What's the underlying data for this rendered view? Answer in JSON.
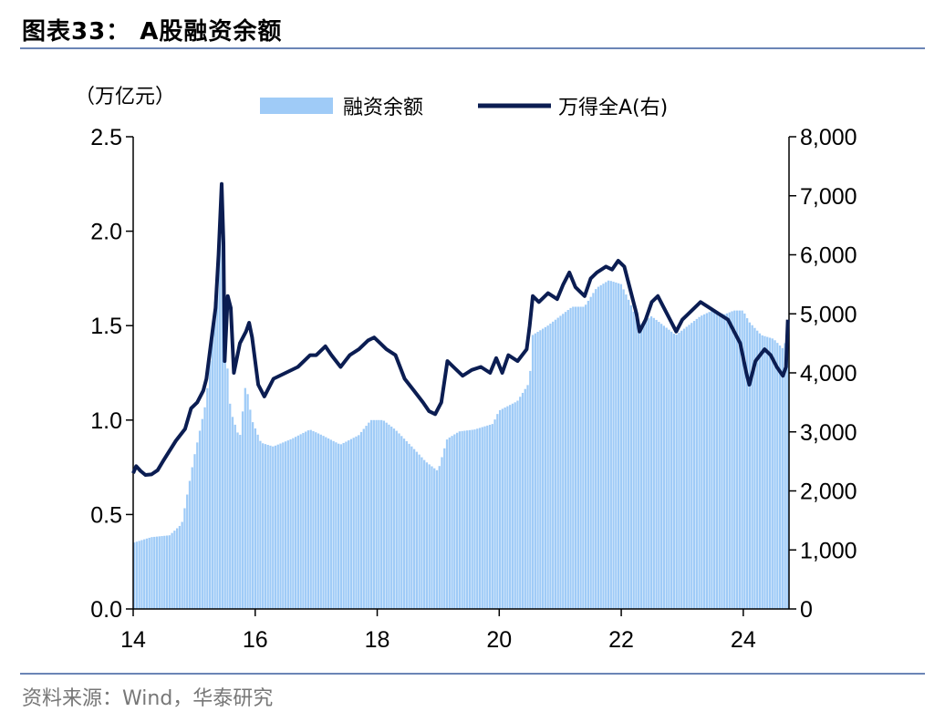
{
  "header": {
    "title": "图表33： A股融资余额"
  },
  "footer": {
    "source": "资料来源：Wind，华泰研究"
  },
  "colors": {
    "bar": "#9fcbf7",
    "line": "#0b1d52",
    "rule": "#6b85b6"
  },
  "chart_data": {
    "type": "bar+line",
    "left_axis_unit": "（万亿元）",
    "x_ticks": [
      "14",
      "16",
      "18",
      "20",
      "22",
      "24"
    ],
    "x_range": [
      2014.0,
      2024.75
    ],
    "y_left": {
      "range": [
        0,
        2.5
      ],
      "ticks": [
        "0.0",
        "0.5",
        "1.0",
        "1.5",
        "2.0",
        "2.5"
      ]
    },
    "y_right": {
      "range": [
        0,
        8000
      ],
      "ticks": [
        "0",
        "1,000",
        "2,000",
        "3,000",
        "4,000",
        "5,000",
        "6,000",
        "7,000",
        "8,000"
      ]
    },
    "series": [
      {
        "name": "融资余额",
        "kind": "bar",
        "axis": "left",
        "points": [
          [
            2014.0,
            0.35
          ],
          [
            2014.3,
            0.38
          ],
          [
            2014.6,
            0.39
          ],
          [
            2014.8,
            0.45
          ],
          [
            2015.0,
            0.8
          ],
          [
            2015.1,
            0.95
          ],
          [
            2015.2,
            1.1
          ],
          [
            2015.3,
            1.45
          ],
          [
            2015.4,
            1.85
          ],
          [
            2015.45,
            2.24
          ],
          [
            2015.5,
            1.5
          ],
          [
            2015.6,
            1.05
          ],
          [
            2015.75,
            0.9
          ],
          [
            2015.85,
            1.2
          ],
          [
            2015.95,
            1.0
          ],
          [
            2016.1,
            0.88
          ],
          [
            2016.3,
            0.86
          ],
          [
            2016.6,
            0.9
          ],
          [
            2016.9,
            0.95
          ],
          [
            2017.1,
            0.92
          ],
          [
            2017.4,
            0.87
          ],
          [
            2017.7,
            0.92
          ],
          [
            2017.9,
            1.0
          ],
          [
            2018.1,
            1.0
          ],
          [
            2018.3,
            0.95
          ],
          [
            2018.6,
            0.85
          ],
          [
            2018.8,
            0.78
          ],
          [
            2019.0,
            0.73
          ],
          [
            2019.15,
            0.9
          ],
          [
            2019.35,
            0.94
          ],
          [
            2019.6,
            0.95
          ],
          [
            2019.9,
            0.98
          ],
          [
            2020.0,
            1.05
          ],
          [
            2020.3,
            1.1
          ],
          [
            2020.5,
            1.2
          ],
          [
            2020.55,
            1.45
          ],
          [
            2020.8,
            1.5
          ],
          [
            2021.0,
            1.55
          ],
          [
            2021.2,
            1.6
          ],
          [
            2021.4,
            1.6
          ],
          [
            2021.6,
            1.7
          ],
          [
            2021.8,
            1.74
          ],
          [
            2022.0,
            1.72
          ],
          [
            2022.15,
            1.62
          ],
          [
            2022.3,
            1.5
          ],
          [
            2022.5,
            1.55
          ],
          [
            2022.7,
            1.5
          ],
          [
            2022.9,
            1.45
          ],
          [
            2023.1,
            1.5
          ],
          [
            2023.3,
            1.55
          ],
          [
            2023.5,
            1.58
          ],
          [
            2023.7,
            1.56
          ],
          [
            2023.85,
            1.58
          ],
          [
            2024.0,
            1.58
          ],
          [
            2024.1,
            1.52
          ],
          [
            2024.3,
            1.45
          ],
          [
            2024.5,
            1.43
          ],
          [
            2024.65,
            1.38
          ],
          [
            2024.72,
            1.43
          ]
        ]
      },
      {
        "name": "万得全A(右)",
        "kind": "line",
        "axis": "right",
        "points": [
          [
            2014.0,
            2300
          ],
          [
            2014.05,
            2420
          ],
          [
            2014.12,
            2340
          ],
          [
            2014.2,
            2270
          ],
          [
            2014.3,
            2280
          ],
          [
            2014.4,
            2350
          ],
          [
            2014.5,
            2520
          ],
          [
            2014.7,
            2850
          ],
          [
            2014.85,
            3050
          ],
          [
            2014.95,
            3400
          ],
          [
            2015.05,
            3500
          ],
          [
            2015.15,
            3700
          ],
          [
            2015.2,
            3900
          ],
          [
            2015.3,
            4700
          ],
          [
            2015.35,
            5100
          ],
          [
            2015.4,
            6000
          ],
          [
            2015.45,
            7200
          ],
          [
            2015.48,
            6200
          ],
          [
            2015.5,
            4200
          ],
          [
            2015.55,
            5300
          ],
          [
            2015.6,
            5100
          ],
          [
            2015.65,
            4000
          ],
          [
            2015.75,
            4500
          ],
          [
            2015.85,
            4700
          ],
          [
            2015.9,
            4850
          ],
          [
            2015.95,
            4600
          ],
          [
            2016.05,
            3800
          ],
          [
            2016.15,
            3600
          ],
          [
            2016.3,
            3900
          ],
          [
            2016.5,
            4000
          ],
          [
            2016.7,
            4100
          ],
          [
            2016.9,
            4300
          ],
          [
            2017.0,
            4300
          ],
          [
            2017.15,
            4450
          ],
          [
            2017.25,
            4300
          ],
          [
            2017.4,
            4100
          ],
          [
            2017.55,
            4300
          ],
          [
            2017.7,
            4400
          ],
          [
            2017.85,
            4550
          ],
          [
            2017.95,
            4600
          ],
          [
            2018.05,
            4500
          ],
          [
            2018.15,
            4400
          ],
          [
            2018.3,
            4300
          ],
          [
            2018.45,
            3900
          ],
          [
            2018.6,
            3700
          ],
          [
            2018.75,
            3500
          ],
          [
            2018.85,
            3350
          ],
          [
            2018.95,
            3300
          ],
          [
            2019.05,
            3500
          ],
          [
            2019.15,
            4200
          ],
          [
            2019.25,
            4100
          ],
          [
            2019.4,
            3950
          ],
          [
            2019.55,
            4050
          ],
          [
            2019.7,
            4100
          ],
          [
            2019.85,
            4000
          ],
          [
            2019.95,
            4250
          ],
          [
            2020.05,
            4000
          ],
          [
            2020.15,
            4300
          ],
          [
            2020.3,
            4200
          ],
          [
            2020.45,
            4400
          ],
          [
            2020.5,
            4800
          ],
          [
            2020.55,
            5300
          ],
          [
            2020.65,
            5200
          ],
          [
            2020.8,
            5350
          ],
          [
            2020.95,
            5250
          ],
          [
            2021.05,
            5500
          ],
          [
            2021.15,
            5700
          ],
          [
            2021.25,
            5450
          ],
          [
            2021.4,
            5300
          ],
          [
            2021.5,
            5600
          ],
          [
            2021.6,
            5700
          ],
          [
            2021.75,
            5800
          ],
          [
            2021.85,
            5750
          ],
          [
            2021.95,
            5900
          ],
          [
            2022.05,
            5800
          ],
          [
            2022.15,
            5400
          ],
          [
            2022.25,
            5000
          ],
          [
            2022.3,
            4700
          ],
          [
            2022.4,
            4900
          ],
          [
            2022.5,
            5200
          ],
          [
            2022.6,
            5300
          ],
          [
            2022.7,
            5100
          ],
          [
            2022.8,
            4900
          ],
          [
            2022.9,
            4700
          ],
          [
            2023.0,
            4900
          ],
          [
            2023.1,
            5000
          ],
          [
            2023.2,
            5100
          ],
          [
            2023.3,
            5200
          ],
          [
            2023.45,
            5100
          ],
          [
            2023.6,
            5000
          ],
          [
            2023.75,
            4900
          ],
          [
            2023.85,
            4700
          ],
          [
            2023.95,
            4500
          ],
          [
            2024.05,
            4000
          ],
          [
            2024.1,
            3800
          ],
          [
            2024.2,
            4200
          ],
          [
            2024.35,
            4400
          ],
          [
            2024.45,
            4300
          ],
          [
            2024.55,
            4100
          ],
          [
            2024.65,
            3950
          ],
          [
            2024.7,
            4100
          ],
          [
            2024.73,
            4900
          ]
        ]
      }
    ],
    "legend_position": "top-center",
    "grid": false
  }
}
